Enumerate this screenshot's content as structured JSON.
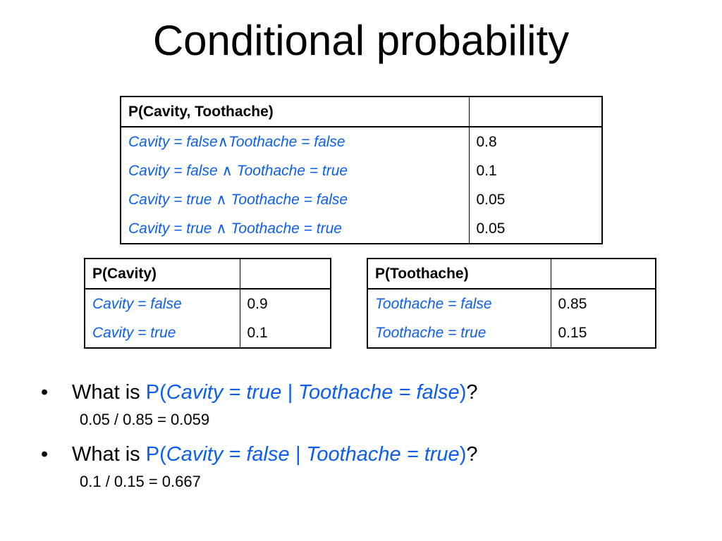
{
  "slide": {
    "title": "Conditional probability"
  },
  "joint_table": {
    "header": "P(Cavity, Toothache)",
    "rows": [
      {
        "left": "Cavity = false",
        "mid": "∧",
        "right": "Toothache = false",
        "value": "0.8"
      },
      {
        "left": "Cavity = false",
        "mid": " ∧ ",
        "right": "Toothache = true",
        "value": "0.1"
      },
      {
        "left": "Cavity = true",
        "mid": " ∧ ",
        "right": "Toothache = false",
        "value": "0.05"
      },
      {
        "left": "Cavity = true",
        "mid": " ∧ ",
        "right": "Toothache = true",
        "value": "0.05"
      }
    ]
  },
  "cavity_table": {
    "header": "P(Cavity)",
    "rows": [
      {
        "label": "Cavity = false",
        "value": "0.9"
      },
      {
        "label": "Cavity = true",
        "value": "0.1"
      }
    ]
  },
  "toothache_table": {
    "header": "P(Toothache)",
    "rows": [
      {
        "label": "Toothache = false",
        "value": "0.85"
      },
      {
        "label": "Toothache = true",
        "value": "0.15"
      }
    ]
  },
  "questions": [
    {
      "bullet": "•",
      "prefix": "What is ",
      "p_open": "P(",
      "expr": "Cavity = true | Toothache = false",
      "p_close": ")",
      "suffix": "?",
      "answer": "0.05 / 0.85 = 0.059"
    },
    {
      "bullet": "•",
      "prefix": "What is ",
      "p_open": "P(",
      "expr": "Cavity = false | Toothache = true",
      "p_close": ")",
      "suffix": "?",
      "answer": "0.1 / 0.15 = 0.667"
    }
  ],
  "colors": {
    "accent_blue": "#0b5ef0",
    "text": "#000000",
    "background": "#ffffff"
  }
}
